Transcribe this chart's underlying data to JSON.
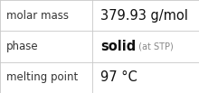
{
  "rows": [
    {
      "label": "molar mass",
      "value_parts": [
        {
          "text": "379.93 g/mol",
          "bold": false,
          "small": false
        }
      ]
    },
    {
      "label": "phase",
      "value_parts": [
        {
          "text": "solid",
          "bold": true,
          "small": false
        },
        {
          "text": " (at STP)",
          "bold": false,
          "small": true
        }
      ]
    },
    {
      "label": "melting point",
      "value_parts": [
        {
          "text": "97 °C",
          "bold": false,
          "small": false
        }
      ]
    }
  ],
  "background_color": "#ffffff",
  "border_color": "#c8c8c8",
  "label_color": "#333333",
  "value_color": "#111111",
  "small_color": "#888888",
  "col_split": 0.465,
  "label_fontsize": 8.5,
  "value_fontsize": 10.5,
  "small_fontsize": 7.0,
  "fig_width": 2.2,
  "fig_height": 1.03,
  "dpi": 100
}
